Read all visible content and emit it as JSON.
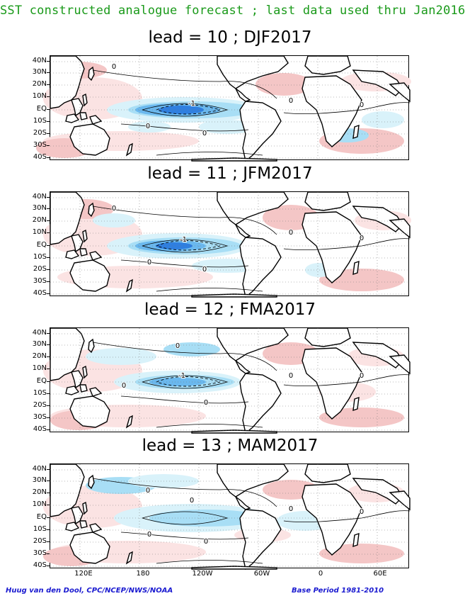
{
  "header": {
    "title": "SST constructed analogue forecast ; last data used thru Jan2016"
  },
  "panels": [
    {
      "title": "lead = 10 ; DJF2017",
      "contour_labels": [
        "-1",
        "0",
        "0",
        "0",
        "0",
        "0"
      ]
    },
    {
      "title": "lead = 11 ; JFM2017",
      "contour_labels": [
        "-1",
        "0",
        "0",
        "0",
        "0",
        "0"
      ]
    },
    {
      "title": "lead = 12 ; FMA2017",
      "contour_labels": [
        "-1",
        "0",
        "0",
        "0",
        "0",
        "0"
      ]
    },
    {
      "title": "lead = 13 ; MAM2017",
      "contour_labels": [
        "0",
        "0",
        "0",
        "0",
        "0",
        "0"
      ]
    }
  ],
  "lat_ticks": [
    "40N",
    "30N",
    "20N",
    "10N",
    "EQ",
    "10S",
    "20S",
    "30S",
    "40S"
  ],
  "lon_ticks": [
    "120E",
    "180",
    "120W",
    "60W",
    "0",
    "60E"
  ],
  "footer": {
    "left": "Huug van den Dool, CPC/NCEP/NWS/NOAA",
    "right": "Base Period 1981-2010"
  },
  "colors": {
    "warm_light": "#f4c6c6",
    "warm_pale": "#fbe3e3",
    "cool_pale": "#d9f2fa",
    "cool_light": "#a8def5",
    "cool_mid": "#6ab8ee",
    "cool_strong": "#2f7fe0",
    "land": "#ffffff",
    "title_green": "#1a9a1a",
    "footer_blue": "#1a1ad0"
  }
}
